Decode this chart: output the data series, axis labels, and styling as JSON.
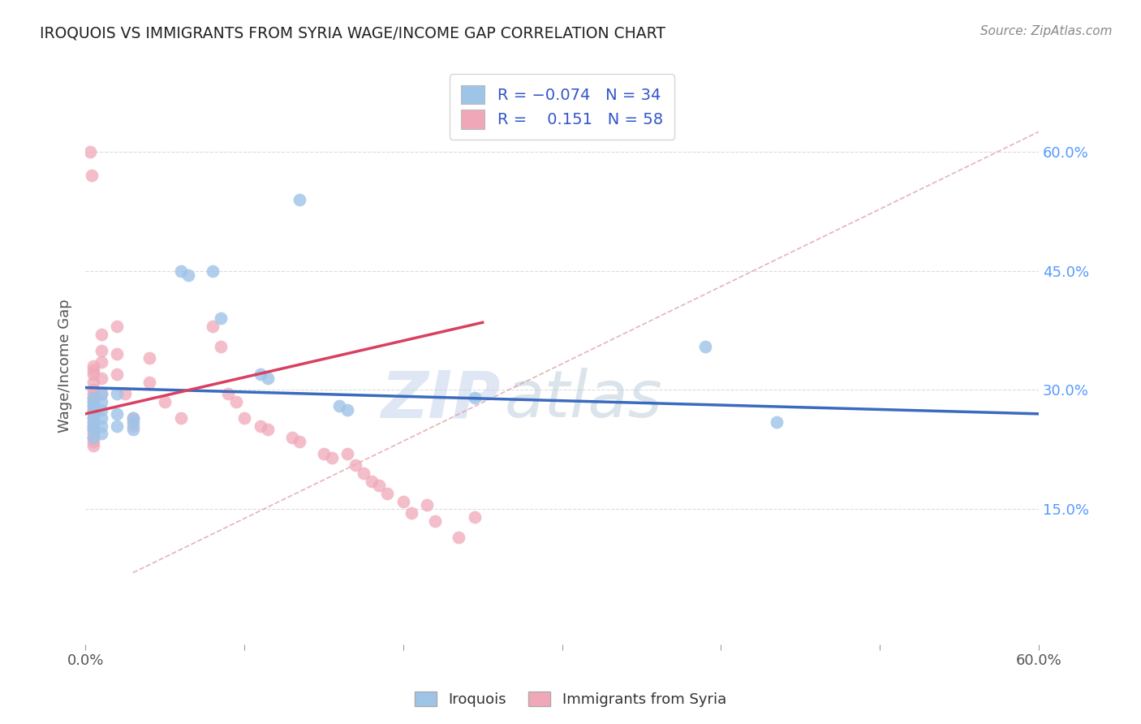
{
  "title": "IROQUOIS VS IMMIGRANTS FROM SYRIA WAGE/INCOME GAP CORRELATION CHART",
  "source": "Source: ZipAtlas.com",
  "ylabel": "Wage/Income Gap",
  "xlim": [
    0.0,
    0.6
  ],
  "ylim": [
    -0.02,
    0.68
  ],
  "legend_label1": "Iroquois",
  "legend_label2": "Immigrants from Syria",
  "R1": -0.074,
  "N1": 34,
  "R2": 0.151,
  "N2": 58,
  "color_blue": "#9ec4e8",
  "color_pink": "#f0a8b8",
  "color_line_blue": "#3a6bbf",
  "color_line_pink": "#d94060",
  "color_diag": "#e0a0a8",
  "watermark_zip": "ZIP",
  "watermark_atlas": "atlas",
  "iroquois_x": [
    0.005,
    0.005,
    0.005,
    0.005,
    0.005,
    0.005,
    0.005,
    0.005,
    0.005,
    0.005,
    0.01,
    0.01,
    0.01,
    0.01,
    0.01,
    0.01,
    0.02,
    0.02,
    0.02,
    0.03,
    0.03,
    0.03,
    0.06,
    0.065,
    0.08,
    0.085,
    0.11,
    0.115,
    0.135,
    0.16,
    0.165,
    0.245,
    0.39,
    0.435
  ],
  "iroquois_y": [
    0.29,
    0.285,
    0.28,
    0.275,
    0.27,
    0.265,
    0.26,
    0.255,
    0.25,
    0.24,
    0.295,
    0.285,
    0.275,
    0.265,
    0.255,
    0.245,
    0.295,
    0.27,
    0.255,
    0.265,
    0.26,
    0.25,
    0.45,
    0.445,
    0.45,
    0.39,
    0.32,
    0.315,
    0.54,
    0.28,
    0.275,
    0.29,
    0.355,
    0.26
  ],
  "syria_x": [
    0.003,
    0.004,
    0.005,
    0.005,
    0.005,
    0.005,
    0.005,
    0.005,
    0.005,
    0.005,
    0.005,
    0.005,
    0.005,
    0.005,
    0.005,
    0.005,
    0.005,
    0.005,
    0.005,
    0.005,
    0.01,
    0.01,
    0.01,
    0.01,
    0.01,
    0.02,
    0.02,
    0.02,
    0.025,
    0.03,
    0.03,
    0.04,
    0.04,
    0.05,
    0.06,
    0.08,
    0.085,
    0.09,
    0.095,
    0.1,
    0.11,
    0.115,
    0.13,
    0.135,
    0.15,
    0.155,
    0.165,
    0.17,
    0.175,
    0.18,
    0.185,
    0.19,
    0.2,
    0.205,
    0.215,
    0.22,
    0.235,
    0.245
  ],
  "syria_y": [
    0.6,
    0.57,
    0.33,
    0.325,
    0.32,
    0.31,
    0.3,
    0.295,
    0.29,
    0.285,
    0.28,
    0.275,
    0.265,
    0.26,
    0.255,
    0.25,
    0.245,
    0.24,
    0.235,
    0.23,
    0.37,
    0.35,
    0.335,
    0.315,
    0.295,
    0.38,
    0.345,
    0.32,
    0.295,
    0.265,
    0.255,
    0.34,
    0.31,
    0.285,
    0.265,
    0.38,
    0.355,
    0.295,
    0.285,
    0.265,
    0.255,
    0.25,
    0.24,
    0.235,
    0.22,
    0.215,
    0.22,
    0.205,
    0.195,
    0.185,
    0.18,
    0.17,
    0.16,
    0.145,
    0.155,
    0.135,
    0.115,
    0.14
  ]
}
